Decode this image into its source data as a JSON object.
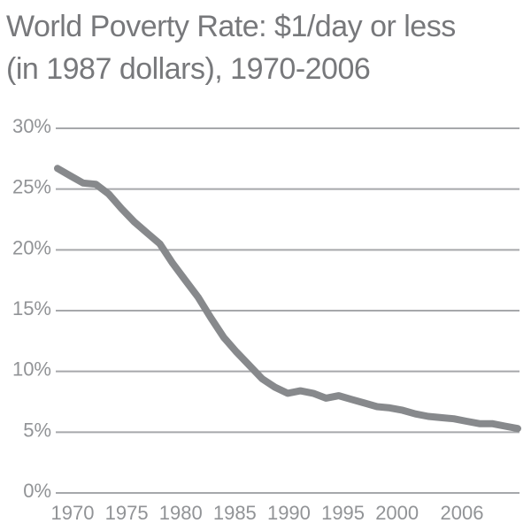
{
  "page": {
    "background": "#ffffff"
  },
  "title": {
    "line1": "World Poverty Rate: $1/day or less",
    "line2": "(in 1987 dollars), 1970-2006"
  },
  "chart_data": {
    "type": "line",
    "title": "World Poverty Rate: $1/day or less (in 1987 dollars), 1970-2006",
    "series_name": "World poverty rate, $1/day or less (in 1987 dollars)",
    "x": [
      1970,
      1971,
      1972,
      1973,
      1974,
      1975,
      1976,
      1977,
      1978,
      1979,
      1980,
      1981,
      1982,
      1983,
      1984,
      1985,
      1986,
      1987,
      1988,
      1989,
      1990,
      1991,
      1992,
      1993,
      1994,
      1995,
      1996,
      1997,
      1998,
      1999,
      2000,
      2001,
      2002,
      2003,
      2004,
      2005,
      2006
    ],
    "values": [
      26.7,
      26.1,
      25.5,
      25.4,
      24.6,
      23.4,
      22.3,
      21.4,
      20.5,
      18.9,
      17.5,
      16.1,
      14.4,
      12.8,
      11.6,
      10.5,
      9.4,
      8.7,
      8.2,
      8.4,
      8.2,
      7.8,
      8.0,
      7.7,
      7.4,
      7.1,
      7.0,
      6.8,
      6.5,
      6.3,
      6.2,
      6.1,
      5.9,
      5.7,
      5.7,
      5.5,
      5.3
    ],
    "xlabel": "",
    "ylabel": "",
    "xlim": [
      1970,
      2006
    ],
    "ylim": [
      0,
      30
    ],
    "y_ticks": [
      0,
      5,
      10,
      15,
      20,
      25,
      30
    ],
    "y_tick_labels": [
      "0%",
      "5%",
      "10%",
      "15%",
      "20%",
      "25%",
      "30%"
    ],
    "x_tick_years": [
      1970,
      1975,
      1980,
      1985,
      1990,
      1995,
      2000,
      2006
    ],
    "x_tick_labels": [
      "1970",
      "1975",
      "1980",
      "1985",
      "1990",
      "1995",
      "2000",
      "2006"
    ],
    "grid": "horizontal-only",
    "legend": "none",
    "colors": {
      "line": "#87898c",
      "grid": "#a6a8ab",
      "tick_label": "#919396",
      "title": "#77787b",
      "background": "#ffffff"
    }
  }
}
